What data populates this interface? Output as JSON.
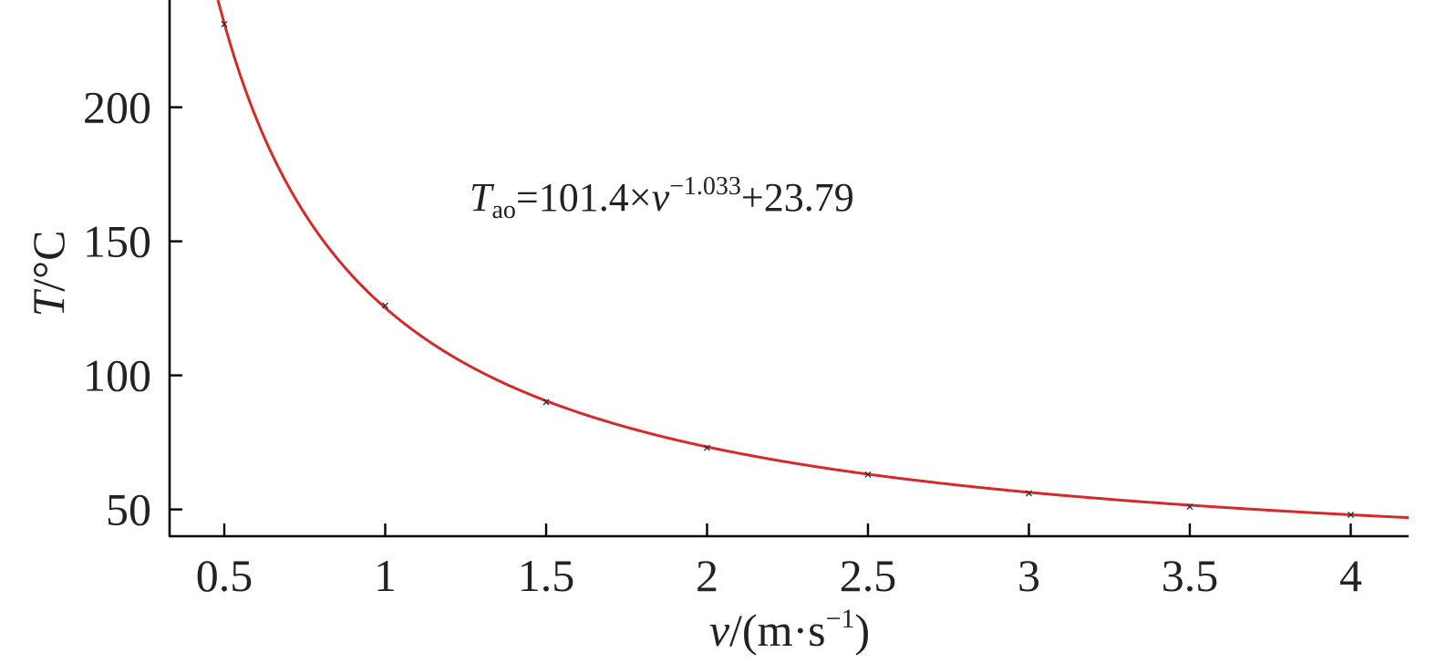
{
  "chart_data": {
    "type": "scatter",
    "title": "",
    "xlabel": {
      "var": "v",
      "text": "/(m·s",
      "sup": "−1",
      "close": ")"
    },
    "ylabel": {
      "var": "T",
      "text": "/°C"
    },
    "xlim": [
      0.33,
      4.18
    ],
    "ylim": [
      40,
      240
    ],
    "x_ticks": [
      0.5,
      1,
      1.5,
      2,
      2.5,
      3,
      3.5,
      4
    ],
    "x_tick_labels": [
      "0.5",
      "1",
      "1.5",
      "2",
      "2.5",
      "3",
      "3.5",
      "4"
    ],
    "y_ticks": [
      50,
      100,
      150,
      200
    ],
    "y_tick_labels": [
      "50",
      "100",
      "150",
      "200"
    ],
    "grid": false,
    "series": [
      {
        "kind": "points",
        "x": [
          0.5,
          1,
          1.5,
          2,
          2.5,
          3,
          3.5,
          4
        ],
        "y": [
          231,
          126,
          90,
          73,
          63,
          56,
          51,
          48
        ],
        "color": "#333333"
      },
      {
        "kind": "fit-curve",
        "color": "#d62a2a",
        "coef_a": 101.4,
        "exponent": -1.033,
        "offset": 23.79,
        "x_range": [
          0.48,
          4.18
        ]
      }
    ],
    "annotation": {
      "var": "T",
      "sub": "ao",
      "eq": "=101.4×",
      "var2": "v",
      "sup": "−1.033",
      "tail": "+23.79"
    }
  }
}
